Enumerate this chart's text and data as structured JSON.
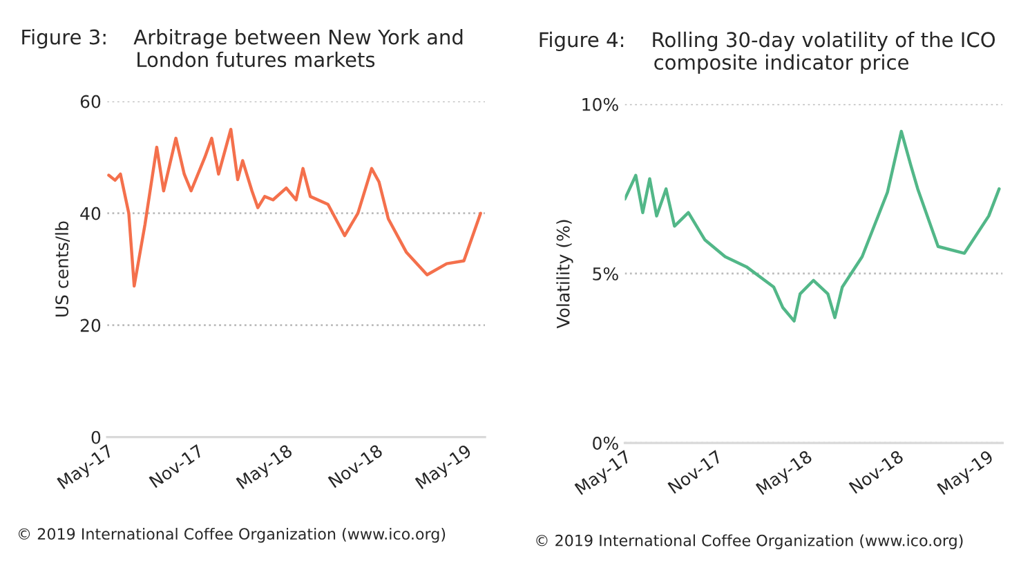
{
  "chart_data": [
    {
      "type": "line",
      "title": "Figure 3:    Arbitrage between New York and\n                  London futures markets",
      "ylabel": "US cents/lb",
      "series": [
        {
          "color": "#f4704c",
          "x": [
            "2017-05-04",
            "2017-05-17",
            "2017-05-28",
            "2017-06-14",
            "2017-06-25",
            "2017-07-17",
            "2017-08-10",
            "2017-08-24",
            "2017-09-18",
            "2017-10-05",
            "2017-10-19",
            "2017-11-16",
            "2017-11-30",
            "2017-12-14",
            "2018-01-08",
            "2018-01-22",
            "2018-02-01",
            "2018-02-20",
            "2018-03-04",
            "2018-03-18",
            "2018-04-04",
            "2018-05-01",
            "2018-05-21",
            "2018-06-04",
            "2018-06-19",
            "2018-07-25",
            "2018-08-28",
            "2018-09-24",
            "2018-10-22",
            "2018-11-06",
            "2018-11-25",
            "2019-01-01",
            "2019-02-12",
            "2019-03-24",
            "2019-04-28",
            "2019-06-01"
          ],
          "values": [
            46.8,
            45.9,
            47,
            40,
            27,
            38,
            51.8,
            44,
            53.4,
            47,
            44,
            50,
            53.4,
            47,
            55,
            46,
            49.4,
            44,
            41,
            43,
            42.4,
            44.5,
            42.4,
            48,
            43,
            41.6,
            36,
            40,
            48,
            45.6,
            39,
            33,
            29,
            31,
            31.5,
            40
          ]
        }
      ],
      "xlim": [
        "2017-05-01",
        "2019-06-10"
      ],
      "xticks": [
        {
          "value": "2017-05-01",
          "label": "May-17"
        },
        {
          "value": "2017-11-01",
          "label": "Nov-17"
        },
        {
          "value": "2018-05-01",
          "label": "May-18"
        },
        {
          "value": "2018-11-01",
          "label": "Nov-18"
        },
        {
          "value": "2019-05-01",
          "label": "May-19"
        }
      ],
      "ylim": [
        0,
        60
      ],
      "yticks": [
        0,
        20,
        40,
        60
      ],
      "grid": "y",
      "annotations": [
        "© 2019 International Coffee Organization (www.ico.org)"
      ]
    },
    {
      "type": "line",
      "title": "Figure 4:    Rolling 30-day volatility of the ICO\n                  composite indicator price",
      "ylabel": "Volatility (%)",
      "series": [
        {
          "color": "#52b788",
          "x": [
            "2017-05-01",
            "2017-05-23",
            "2017-06-06",
            "2017-06-20",
            "2017-07-04",
            "2017-07-23",
            "2017-08-09",
            "2017-09-06",
            "2017-10-09",
            "2017-11-19",
            "2018-01-01",
            "2018-02-25",
            "2018-03-15",
            "2018-04-07",
            "2018-04-19",
            "2018-05-16",
            "2018-06-14",
            "2018-06-28",
            "2018-07-13",
            "2018-08-22",
            "2018-10-12",
            "2018-11-09",
            "2018-11-28",
            "2018-12-12",
            "2019-01-22",
            "2019-03-16",
            "2019-05-04",
            "2019-05-25"
          ],
          "values": [
            7.2,
            7.9,
            6.8,
            7.8,
            6.7,
            7.5,
            6.4,
            6.8,
            6.0,
            5.5,
            5.2,
            4.6,
            4.0,
            3.6,
            4.4,
            4.8,
            4.4,
            3.7,
            4.6,
            5.5,
            7.4,
            9.2,
            8.2,
            7.5,
            5.8,
            5.6,
            6.7,
            7.5
          ]
        }
      ],
      "xlim": [
        "2017-05-01",
        "2019-06-01"
      ],
      "xticks": [
        {
          "value": "2017-05-01",
          "label": "May-17"
        },
        {
          "value": "2017-11-01",
          "label": "Nov-17"
        },
        {
          "value": "2018-05-01",
          "label": "May-18"
        },
        {
          "value": "2018-11-01",
          "label": "Nov-18"
        },
        {
          "value": "2019-05-01",
          "label": "May-19"
        }
      ],
      "ylim": [
        0,
        10
      ],
      "yticks": [
        {
          "value": 0,
          "label": "0%"
        },
        {
          "value": 5,
          "label": "5%"
        },
        {
          "value": 10,
          "label": "10%"
        }
      ],
      "grid": "y",
      "annotations": [
        "© 2019 International Coffee Organization (www.ico.org)"
      ]
    }
  ]
}
